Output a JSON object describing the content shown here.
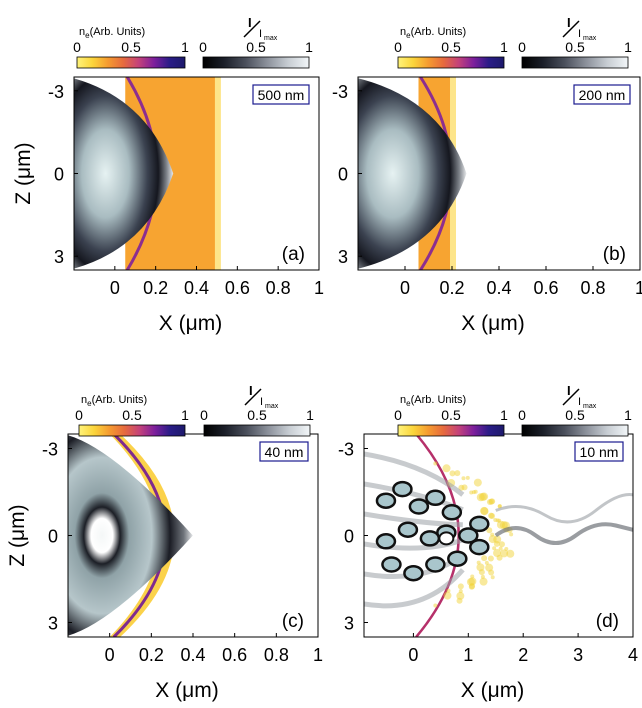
{
  "figure": {
    "cbar_ne_label": "n",
    "cbar_ne_sub": "e",
    "cbar_ne_suffix": "(Arb. Units)",
    "cbar_I_num": "I",
    "cbar_I_den": "I",
    "cbar_I_sub": "max",
    "colormap_ne": [
      "#fff37a",
      "#fbd53b",
      "#f59b30",
      "#e66a3e",
      "#c4427a",
      "#7d1f9c",
      "#2a1c87",
      "#1d1a6b"
    ],
    "colormap_I": [
      "#000000",
      "#1b1f29",
      "#4a4f5b",
      "#8a8f99",
      "#c6ccd2",
      "#f2f6f8"
    ],
    "bulk_color": "#f7a431"
  },
  "chart_data": [
    {
      "type": "heatmap",
      "panel_label": "(a)",
      "thickness_label": "500 nm",
      "xlabel": "X (μm)",
      "ylabel": "Z (μm)",
      "xlim": [
        -0.2,
        1.0
      ],
      "ylim": [
        -3.5,
        3.5
      ],
      "xticks": [
        0,
        0.2,
        0.4,
        0.6,
        0.8,
        1
      ],
      "xtick_labels": [
        "0",
        "0.2",
        "0.4",
        "0.6",
        "0.8",
        "1"
      ],
      "yticks": [
        -3,
        0,
        3
      ],
      "ytick_labels": [
        "-3",
        "0",
        "3"
      ],
      "target_thickness_um": 0.5,
      "cbar_ne_ticks": [
        "0",
        "0.5",
        "1"
      ],
      "cbar_I_ticks": [
        "0",
        "0.5",
        "1"
      ]
    },
    {
      "type": "heatmap",
      "panel_label": "(b)",
      "thickness_label": "200 nm",
      "xlabel": "X (μm)",
      "ylabel": "",
      "xlim": [
        -0.2,
        1.0
      ],
      "ylim": [
        -3.5,
        3.5
      ],
      "xticks": [
        0,
        0.2,
        0.4,
        0.6,
        0.8,
        1
      ],
      "xtick_labels": [
        "0",
        "0.2",
        "0.4",
        "0.6",
        "0.8",
        "1"
      ],
      "yticks": [
        -3,
        0,
        3
      ],
      "ytick_labels": [
        "-3",
        "0",
        "3"
      ],
      "target_thickness_um": 0.2,
      "cbar_ne_ticks": [
        "0",
        "0.5",
        "1"
      ],
      "cbar_I_ticks": [
        "0",
        "0.5",
        "1"
      ]
    },
    {
      "type": "heatmap",
      "panel_label": "(c)",
      "thickness_label": "40 nm",
      "xlabel": "X (μm)",
      "ylabel": "Z (μm)",
      "xlim": [
        -0.2,
        1.0
      ],
      "ylim": [
        -3.5,
        3.5
      ],
      "xticks": [
        0,
        0.2,
        0.4,
        0.6,
        0.8,
        1
      ],
      "xtick_labels": [
        "0",
        "0.2",
        "0.4",
        "0.6",
        "0.8",
        "1"
      ],
      "yticks": [
        -3,
        0,
        3
      ],
      "ytick_labels": [
        "-3",
        "0",
        "3"
      ],
      "target_thickness_um": 0.04,
      "cbar_ne_ticks": [
        "0",
        "0.5",
        "1"
      ],
      "cbar_I_ticks": [
        "0",
        "0.5",
        "1"
      ]
    },
    {
      "type": "heatmap",
      "panel_label": "(d)",
      "thickness_label": "10 nm",
      "xlabel": "X (μm)",
      "ylabel": "",
      "xlim": [
        -0.9,
        4.0
      ],
      "ylim": [
        -3.5,
        3.5
      ],
      "xticks": [
        0,
        1,
        2,
        3,
        4
      ],
      "xtick_labels": [
        "0",
        "1",
        "2",
        "3",
        "4"
      ],
      "yticks": [
        -3,
        0,
        3
      ],
      "ytick_labels": [
        "-3",
        "0",
        "3"
      ],
      "target_thickness_um": 0.01,
      "cbar_ne_ticks": [
        "0",
        "0.5",
        "1"
      ],
      "cbar_I_ticks": [
        "0",
        "0.5",
        "1"
      ]
    }
  ]
}
